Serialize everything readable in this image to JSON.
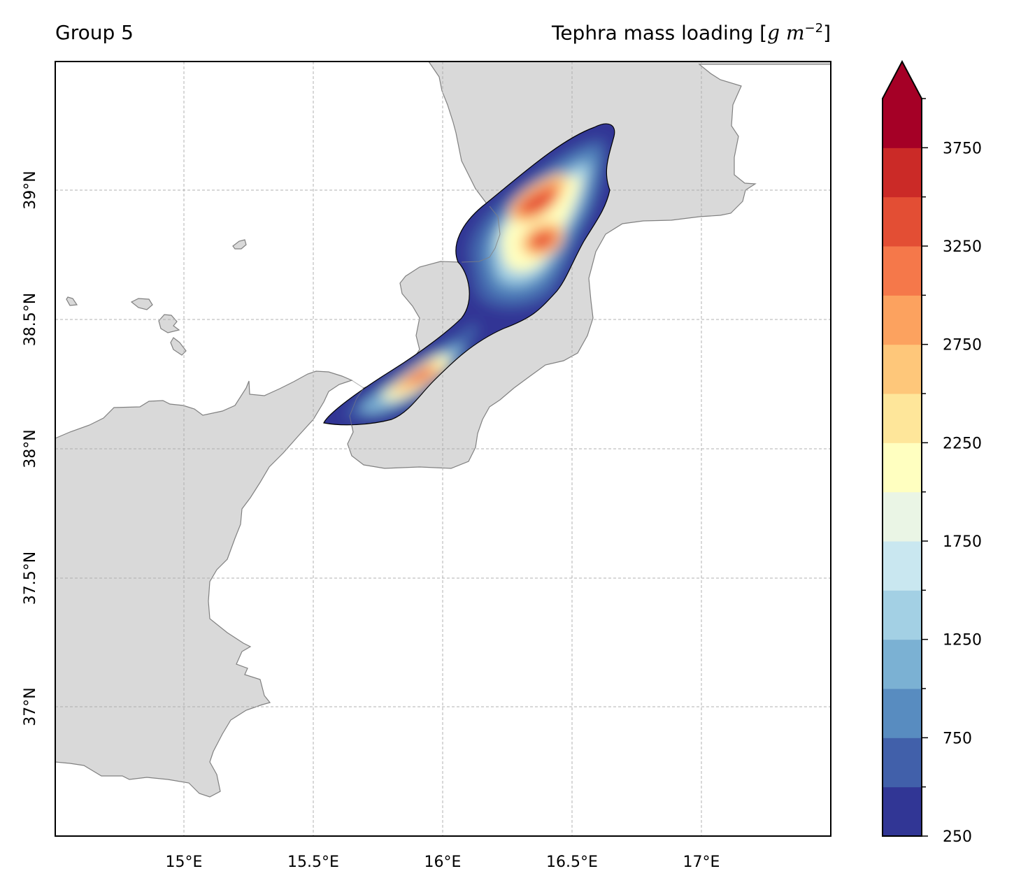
{
  "header": {
    "left_title": "Group 5",
    "right_title_text": "Tephra mass loading [",
    "right_title_unit_g": "g",
    "right_title_unit_m": "m",
    "right_title_exp": "−2",
    "right_title_close": "]"
  },
  "map": {
    "lon_ticks": [
      "15°E",
      "15.5°E",
      "16°E",
      "16.5°E",
      "17°E"
    ],
    "lat_ticks": [
      "39°N",
      "38.5°N",
      "38°N",
      "37.5°N",
      "37°N"
    ],
    "land_color": "#d9d9d9",
    "coast_color": "#808080",
    "grid": true
  },
  "colorbar": {
    "tick_labels": [
      "250",
      "750",
      "1250",
      "1750",
      "2250",
      "2750",
      "3250",
      "3750"
    ],
    "levels": [
      250,
      500,
      750,
      1000,
      1250,
      1500,
      1750,
      2000,
      2250,
      2500,
      2750,
      3000,
      3250,
      3500,
      3750,
      4000
    ],
    "colors": [
      "#313695",
      "#4160aa",
      "#588cc0",
      "#7bb1d3",
      "#a3d0e4",
      "#c9e7f0",
      "#eaf5e5",
      "#ffffc0",
      "#fee69a",
      "#fec77a",
      "#fca25f",
      "#f5784a",
      "#e34e34",
      "#cb2a27",
      "#a50026"
    ],
    "extend": "max"
  }
}
